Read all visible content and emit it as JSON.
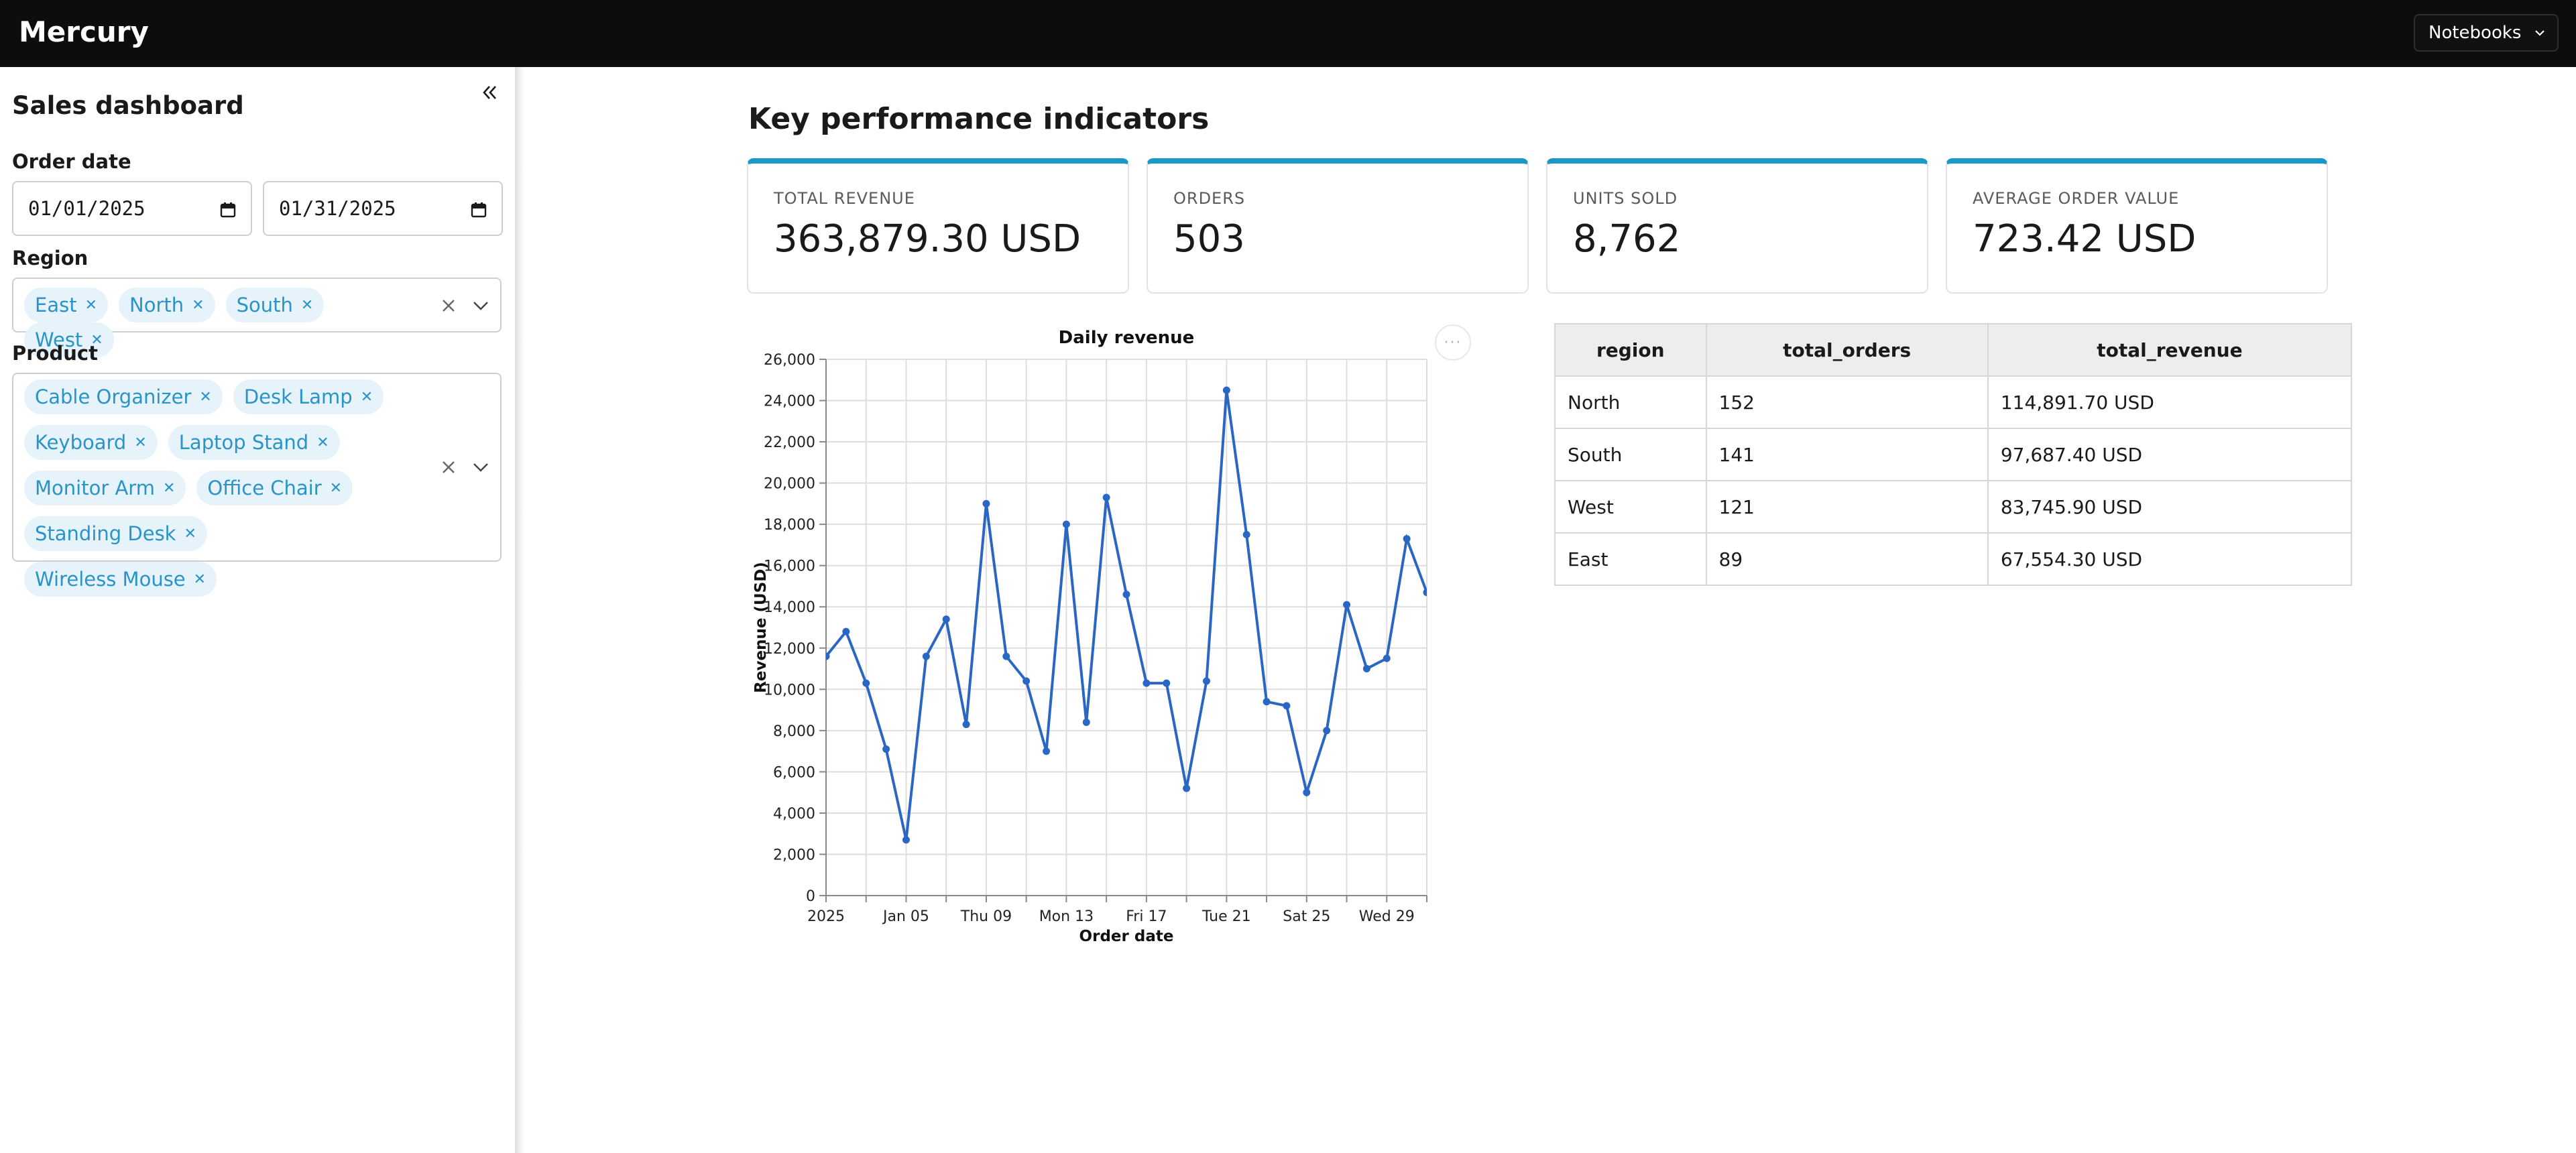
{
  "header": {
    "brand": "Mercury",
    "notebooks_label": "Notebooks"
  },
  "sidebar": {
    "title": "Sales dashboard",
    "order_date_label": "Order date",
    "date_start": "01/01/2025",
    "date_end": "01/31/2025",
    "region_label": "Region",
    "regions": [
      "East",
      "North",
      "South",
      "West"
    ],
    "product_label": "Product",
    "products": [
      "Cable Organizer",
      "Desk Lamp",
      "Keyboard",
      "Laptop Stand",
      "Monitor Arm",
      "Office Chair",
      "Standing Desk",
      "Wireless Mouse"
    ]
  },
  "main": {
    "kpi_title": "Key performance indicators",
    "kpis": [
      {
        "label": "TOTAL REVENUE",
        "value": "363,879.30 USD"
      },
      {
        "label": "ORDERS",
        "value": "503"
      },
      {
        "label": "UNITS SOLD",
        "value": "8,762"
      },
      {
        "label": "AVERAGE ORDER VALUE",
        "value": "723.42 USD"
      }
    ],
    "table": {
      "columns": [
        "region",
        "total_orders",
        "total_revenue"
      ],
      "rows": [
        [
          "North",
          "152",
          "114,891.70 USD"
        ],
        [
          "South",
          "141",
          "97,687.40 USD"
        ],
        [
          "West",
          "121",
          "83,745.90 USD"
        ],
        [
          "East",
          "89",
          "67,554.30 USD"
        ]
      ]
    },
    "more_label": "···"
  },
  "colors": {
    "accent": "#1b98c6",
    "chip_bg": "#e6f3fb",
    "chip_text": "#2a93c8",
    "line": "#2a66c4"
  },
  "chart_data": {
    "type": "line",
    "title": "Daily revenue",
    "xlabel": "Order date",
    "ylabel": "Revenue (USD)",
    "ylim": [
      0,
      26000
    ],
    "yticks": [
      "0",
      "2,000",
      "4,000",
      "6,000",
      "8,000",
      "10,000",
      "12,000",
      "14,000",
      "16,000",
      "18,000",
      "20,000",
      "22,000",
      "24,000",
      "26,000"
    ],
    "xticks": [
      {
        "label": "2025",
        "x": "2025-01-01"
      },
      {
        "label": "Jan 05",
        "x": "2025-01-05"
      },
      {
        "label": "Thu 09",
        "x": "2025-01-09"
      },
      {
        "label": "Mon 13",
        "x": "2025-01-13"
      },
      {
        "label": "Fri 17",
        "x": "2025-01-17"
      },
      {
        "label": "Tue 21",
        "x": "2025-01-21"
      },
      {
        "label": "Sat 25",
        "x": "2025-01-25"
      },
      {
        "label": "Wed 29",
        "x": "2025-01-29"
      }
    ],
    "x": [
      "2025-01-01",
      "2025-01-02",
      "2025-01-03",
      "2025-01-04",
      "2025-01-05",
      "2025-01-06",
      "2025-01-07",
      "2025-01-08",
      "2025-01-09",
      "2025-01-10",
      "2025-01-11",
      "2025-01-12",
      "2025-01-13",
      "2025-01-14",
      "2025-01-15",
      "2025-01-16",
      "2025-01-17",
      "2025-01-18",
      "2025-01-19",
      "2025-01-20",
      "2025-01-21",
      "2025-01-22",
      "2025-01-23",
      "2025-01-24",
      "2025-01-25",
      "2025-01-26",
      "2025-01-27",
      "2025-01-28",
      "2025-01-29",
      "2025-01-30",
      "2025-01-31"
    ],
    "values": [
      11600,
      12800,
      10300,
      7100,
      2700,
      11600,
      13400,
      8300,
      19000,
      11600,
      10400,
      7000,
      18000,
      8400,
      19300,
      14600,
      10300,
      10300,
      5200,
      10400,
      24500,
      17500,
      9400,
      9200,
      5000,
      8000,
      14100,
      11000,
      11500,
      17300,
      14700
    ],
    "grid": true
  }
}
